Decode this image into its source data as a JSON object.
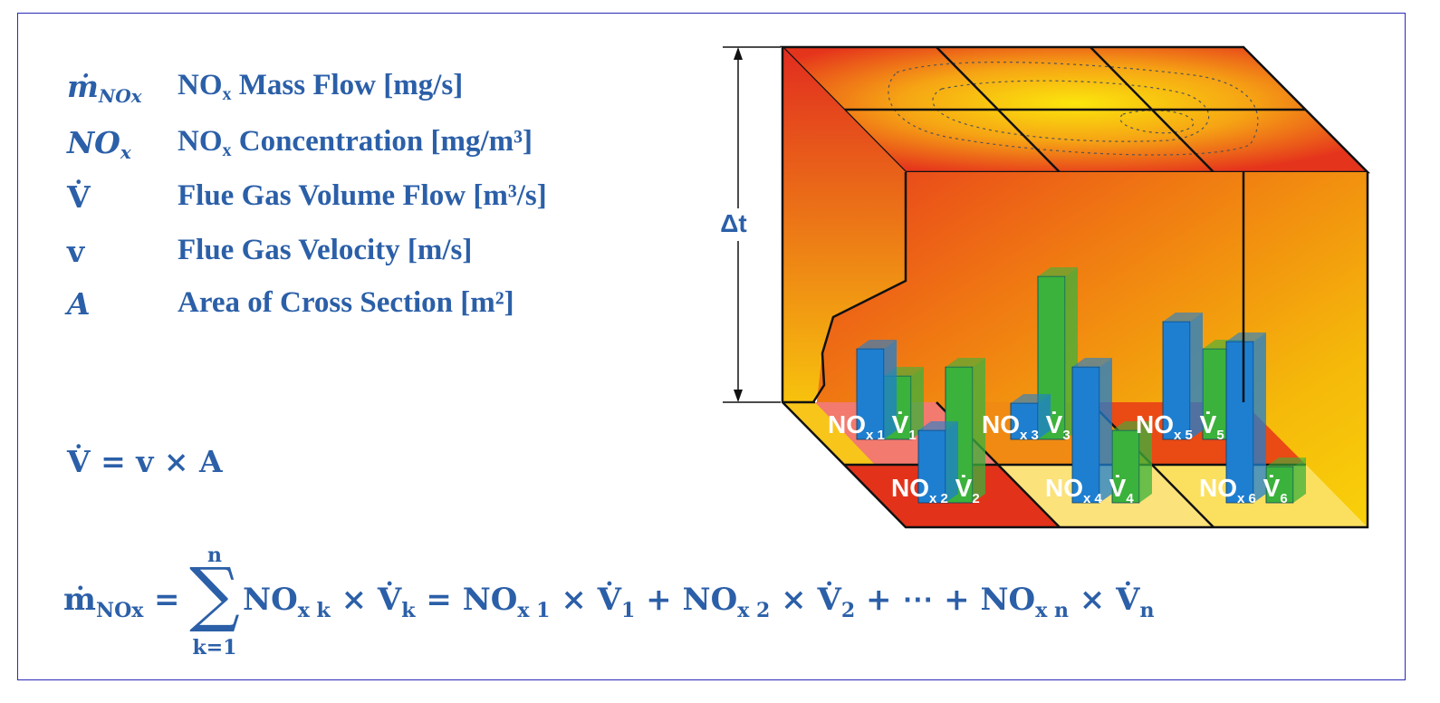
{
  "legend": [
    {
      "symbol": "ṁ",
      "symbol_sub": "NOx",
      "description": "NO",
      "desc_sub": "x",
      "description_rest": " Mass Flow [mg/s]"
    },
    {
      "symbol": "NO",
      "symbol_sub": "x",
      "description": "NO",
      "desc_sub": "x",
      "description_rest": " Concentration [mg/m³]"
    },
    {
      "symbol": "V̇",
      "symbol_sub": "",
      "description": "Flue Gas Volume Flow [m³/s]",
      "desc_sub": "",
      "description_rest": ""
    },
    {
      "symbol": "v",
      "symbol_sub": "",
      "description": "Flue Gas Velocity [m/s]",
      "desc_sub": "",
      "description_rest": ""
    },
    {
      "symbol": "A",
      "symbol_sub": "",
      "description": "Area of Cross Section [m²]",
      "desc_sub": "",
      "description_rest": ""
    }
  ],
  "equation_volume": "V̇ = v × A",
  "equation_sum": {
    "lhs": "ṁ",
    "lhs_sub": "NOx",
    "upper": "n",
    "sigma": "∑",
    "lower": "k=1",
    "rhs": "NO",
    "rhs_text": "= ∑ NOx k × V̇k = NOx 1 × V̇1 + NOx 2 × V̇2 + ⋯ + NOx n × V̇n"
  },
  "diagram": {
    "delta_label": "Δt",
    "cells": [
      {
        "conc": "NO",
        "conc_sub": "x 1",
        "flow": "V̇",
        "flow_sub": "1"
      },
      {
        "conc": "NO",
        "conc_sub": "x 2",
        "flow": "V̇",
        "flow_sub": "2"
      },
      {
        "conc": "NO",
        "conc_sub": "x 3",
        "flow": "V̇",
        "flow_sub": "3"
      },
      {
        "conc": "NO",
        "conc_sub": "x 4",
        "flow": "V̇",
        "flow_sub": "4"
      },
      {
        "conc": "NO",
        "conc_sub": "x 5",
        "flow": "V̇",
        "flow_sub": "5"
      },
      {
        "conc": "NO",
        "conc_sub": "x 6",
        "flow": "V̇",
        "flow_sub": "6"
      }
    ]
  },
  "colors": {
    "text": "#2b5fa8",
    "frame": "#2a2ab8",
    "bar_conc": "#1e7fd0",
    "bar_flow": "#3bb23b"
  }
}
